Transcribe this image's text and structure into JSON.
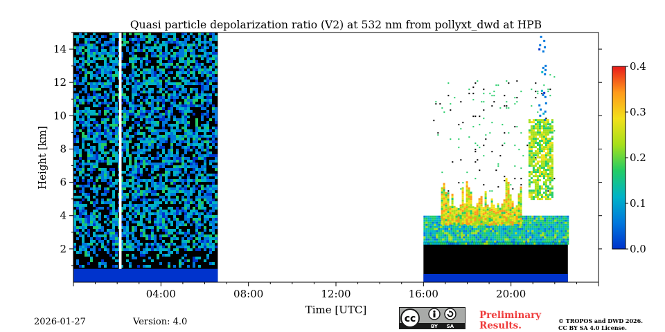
{
  "chart_data": {
    "type": "heatmap",
    "title": "Quasi particle depolarization ratio (V2) at 532 nm from pollyxt_dwd at HPB",
    "xlabel": "Time [UTC]",
    "ylabel": "Height [km]",
    "xlim_hours": [
      0,
      24
    ],
    "ylim_km": [
      0,
      15
    ],
    "x_ticks": [
      {
        "value": 4,
        "label": "04:00"
      },
      {
        "value": 8,
        "label": "08:00"
      },
      {
        "value": 12,
        "label": "12:00"
      },
      {
        "value": 16,
        "label": "16:00"
      },
      {
        "value": 20,
        "label": "20:00"
      }
    ],
    "y_ticks": [
      {
        "value": 2,
        "label": "2"
      },
      {
        "value": 4,
        "label": "4"
      },
      {
        "value": 6,
        "label": "6"
      },
      {
        "value": 8,
        "label": "8"
      },
      {
        "value": 10,
        "label": "10"
      },
      {
        "value": 12,
        "label": "12"
      },
      {
        "value": 14,
        "label": "14"
      }
    ],
    "colorbar": {
      "min": 0.0,
      "max": 0.4,
      "ticks": [
        {
          "value": 0.0,
          "label": "0.0"
        },
        {
          "value": 0.1,
          "label": "0.1"
        },
        {
          "value": 0.2,
          "label": "0.2"
        },
        {
          "value": 0.3,
          "label": "0.3"
        },
        {
          "value": 0.4,
          "label": "0.4"
        }
      ],
      "colormap": [
        "#0033cc",
        "#0077dd",
        "#00b3c8",
        "#22cc66",
        "#a6e01a",
        "#f2e01a",
        "#ff9a1a",
        "#e81a1a"
      ]
    },
    "segments": [
      {
        "name": "night-measurement",
        "start_h": 0.0,
        "end_h": 6.6,
        "top_km": 15.0,
        "gap_start_h": 2.08,
        "gap_end_h": 2.2,
        "noise_level": 0.06
      },
      {
        "name": "evening-measurement",
        "start_h": 16.0,
        "end_h": 22.6,
        "top_km": 15.0
      }
    ],
    "layers": [
      {
        "name": "surface-layer-night",
        "value": 0.01,
        "start_h": 0.0,
        "end_h": 6.6,
        "top_km": 0.8
      },
      {
        "name": "surface-layer-evening",
        "value": 0.02,
        "start_h": 16.0,
        "end_h": 22.6,
        "top_km": 0.5
      },
      {
        "name": "aerosol-layer",
        "value": 0.14,
        "start_h": 16.0,
        "end_h": 22.6,
        "bottom_km": 2.3,
        "top_km": 4.0
      },
      {
        "name": "dust-plumes",
        "value": 0.27,
        "start_h": 16.8,
        "end_h": 20.5,
        "bottom_km": 3.5,
        "top_km": 6.5
      },
      {
        "name": "cirrus-plume",
        "value": 0.22,
        "start_h": 20.8,
        "end_h": 21.9,
        "bottom_km": 5.0,
        "top_km": 9.8
      }
    ]
  },
  "footer": {
    "date": "2026-01-27",
    "version": "Version: 4.0",
    "preliminary": [
      "Preliminary",
      "Results."
    ],
    "copyright": [
      "© TROPOS and DWD 2026.",
      "CC BY SA 4.0 License."
    ],
    "badge": {
      "cc": "cc",
      "by": "BY",
      "sa": "SA"
    }
  },
  "colors": {
    "no_signal": "#000000",
    "background": "#ffffff",
    "preliminary": "#ef3b3b",
    "badge": "#a8aaa8"
  }
}
